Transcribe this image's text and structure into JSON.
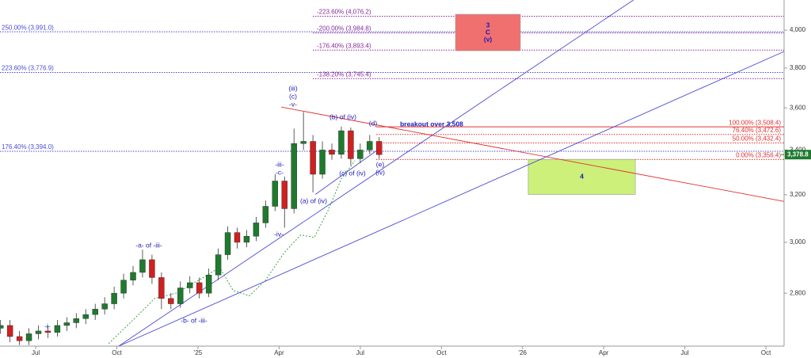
{
  "chart_data": {
    "type": "candlestick",
    "log_scale": true,
    "xlim": [
      -1.32,
      27.67
    ],
    "ylim": [
      2606,
      4167
    ],
    "xticks": [
      {
        "value": 0,
        "label": "Jul"
      },
      {
        "value": 3,
        "label": "Oct"
      },
      {
        "value": 6,
        "label": "'25"
      },
      {
        "value": 9,
        "label": "Apr"
      },
      {
        "value": 12,
        "label": "Jul"
      },
      {
        "value": 15,
        "label": "Oct"
      },
      {
        "value": 18,
        "label": "'26"
      },
      {
        "value": 21,
        "label": "Apr"
      },
      {
        "value": 24,
        "label": "Jul"
      },
      {
        "value": 27,
        "label": "Oct"
      }
    ],
    "yticks": [
      {
        "value": 2800,
        "label": "2,800"
      },
      {
        "value": 3000,
        "label": "3,000"
      },
      {
        "value": 3200,
        "label": "3,200"
      },
      {
        "value": 3400,
        "label": "3,400"
      },
      {
        "value": 3600,
        "label": "3,600"
      },
      {
        "value": 3800,
        "label": "3,800"
      },
      {
        "value": 4000,
        "label": "4,000"
      }
    ],
    "up_color": "#1f7a2e",
    "down_color": "#d02020",
    "x": [
      -1.3,
      -0.95,
      -0.6,
      -0.25,
      0.1,
      0.45,
      0.8,
      1.15,
      1.5,
      1.85,
      2.2,
      2.55,
      2.9,
      3.25,
      3.6,
      3.95,
      4.3,
      4.65,
      5.0,
      5.35,
      5.7,
      6.05,
      6.4,
      6.75,
      7.1,
      7.45,
      7.8,
      8.15,
      8.5,
      8.85,
      9.2,
      9.55,
      9.9,
      10.25,
      10.6,
      10.95,
      11.3,
      11.65,
      12.0,
      12.35,
      12.7
    ],
    "open": [
      2670,
      2680,
      2640,
      2625,
      2650,
      2660,
      2655,
      2680,
      2690,
      2705,
      2720,
      2740,
      2760,
      2800,
      2850,
      2880,
      2930,
      2860,
      2780,
      2760,
      2820,
      2840,
      2800,
      2870,
      2950,
      3040,
      3000,
      3025,
      3080,
      3150,
      3260,
      3140,
      3430,
      3440,
      3290,
      3400,
      3380,
      3490,
      3360,
      3400,
      3440
    ],
    "high": [
      2700,
      2700,
      2660,
      2670,
      2680,
      2680,
      2700,
      2710,
      2725,
      2740,
      2760,
      2785,
      2825,
      2875,
      2905,
      2970,
      2950,
      2880,
      2800,
      2845,
      2865,
      2860,
      2895,
      2975,
      3065,
      3060,
      3050,
      3105,
      3175,
      3290,
      3280,
      3500,
      3580,
      3470,
      3440,
      3430,
      3510,
      3505,
      3430,
      3470,
      3460
    ],
    "low": [
      2650,
      2620,
      2610,
      2610,
      2630,
      2635,
      2640,
      2660,
      2670,
      2685,
      2700,
      2720,
      2740,
      2780,
      2830,
      2860,
      2835,
      2740,
      2740,
      2745,
      2800,
      2780,
      2785,
      2850,
      2930,
      2975,
      2980,
      3005,
      3060,
      3130,
      3060,
      3120,
      3400,
      3210,
      3270,
      3355,
      3360,
      3330,
      3340,
      3380,
      3360
    ],
    "close": [
      2680,
      2640,
      2625,
      2650,
      2660,
      2655,
      2680,
      2690,
      2705,
      2720,
      2740,
      2760,
      2800,
      2850,
      2880,
      2930,
      2860,
      2780,
      2760,
      2820,
      2840,
      2800,
      2870,
      2950,
      3040,
      3000,
      3025,
      3080,
      3150,
      3260,
      3140,
      3430,
      3440,
      3290,
      3400,
      3380,
      3490,
      3360,
      3400,
      3440,
      3378.8
    ],
    "last_price": {
      "value": 3378.8,
      "label": "3,378.8"
    },
    "moving_average": {
      "color": "#2e9a2e",
      "x": [
        2.7,
        3.6,
        4.4,
        5.2,
        6.2,
        6.8,
        7.3,
        7.9,
        8.5,
        9.2,
        9.8,
        10.3,
        10.8,
        11.3,
        11.8
      ],
      "values": [
        2615,
        2700,
        2780,
        2800,
        2860,
        2900,
        2810,
        2790,
        2850,
        2960,
        3030,
        3020,
        3130,
        3270,
        3350
      ]
    },
    "trendlines": [
      {
        "color": "#4a4ad6",
        "x": [
          3.07,
          22.1
        ],
        "values": [
          2606,
          4167
        ]
      },
      {
        "color": "#4a4ad6",
        "x": [
          3.07,
          27.67
        ],
        "values": [
          2606,
          3886
        ]
      },
      {
        "color": "#4a4ad6",
        "x": [
          10.34,
          12.74
        ],
        "values": [
          3201,
          3409
        ]
      },
      {
        "color": "#e03030",
        "x": [
          9.08,
          27.67
        ],
        "values": [
          3604,
          3171
        ]
      }
    ],
    "fib_levels_left": {
      "color": "#4a4ad6",
      "levels": [
        {
          "value": 3991.0,
          "label": "250.00% (3,991.0)"
        },
        {
          "value": 3776.9,
          "label": "223.60% (3,776.9)"
        },
        {
          "value": 3394.0,
          "label": "176.40% (3,394.0)"
        }
      ]
    },
    "fib_levels_mid": {
      "color": "#8a2a9a",
      "levels": [
        {
          "value": 4076.2,
          "label": "-223.60% (4,076.2)"
        },
        {
          "value": 3984.8,
          "label": "-200.00% (3,984.8)"
        },
        {
          "value": 3893.4,
          "label": "-176.40% (3,893.4)"
        },
        {
          "value": 3745.4,
          "label": "-138.20% (3,745.4)"
        }
      ]
    },
    "fib_levels_right": {
      "color": "#e03030",
      "levels": [
        {
          "value": 3508.4,
          "label": "100.00% (3,508.4)"
        },
        {
          "value": 3472.6,
          "label": "76.40% (3,472.6)"
        },
        {
          "value": 3432.4,
          "label": "50.00% (3,432.4)"
        },
        {
          "value": 3356.4,
          "label": "0.00% (3,356.4)"
        }
      ]
    },
    "boxes": [
      {
        "color": "#f07070",
        "x": [
          15.52,
          17.92
        ],
        "values": [
          3890,
          4087
        ],
        "texts": [
          "3",
          "C",
          "(v)"
        ]
      },
      {
        "color": "#ccf07a",
        "x": [
          18.21,
          22.17
        ],
        "values": [
          3201,
          3357
        ],
        "texts": [
          "4"
        ]
      }
    ],
    "annotations": [
      "(iii)",
      "(c)",
      "-v-",
      "(b) of (iv)",
      "(d)",
      "breakout over 3,508",
      "-iii-",
      "-c-",
      "(c) of (iv)",
      "(e)",
      "(iv)",
      "(a) of (iv)",
      "-iv-",
      "-a- of -iii-",
      "-b- of -iii-",
      "-i-"
    ]
  }
}
